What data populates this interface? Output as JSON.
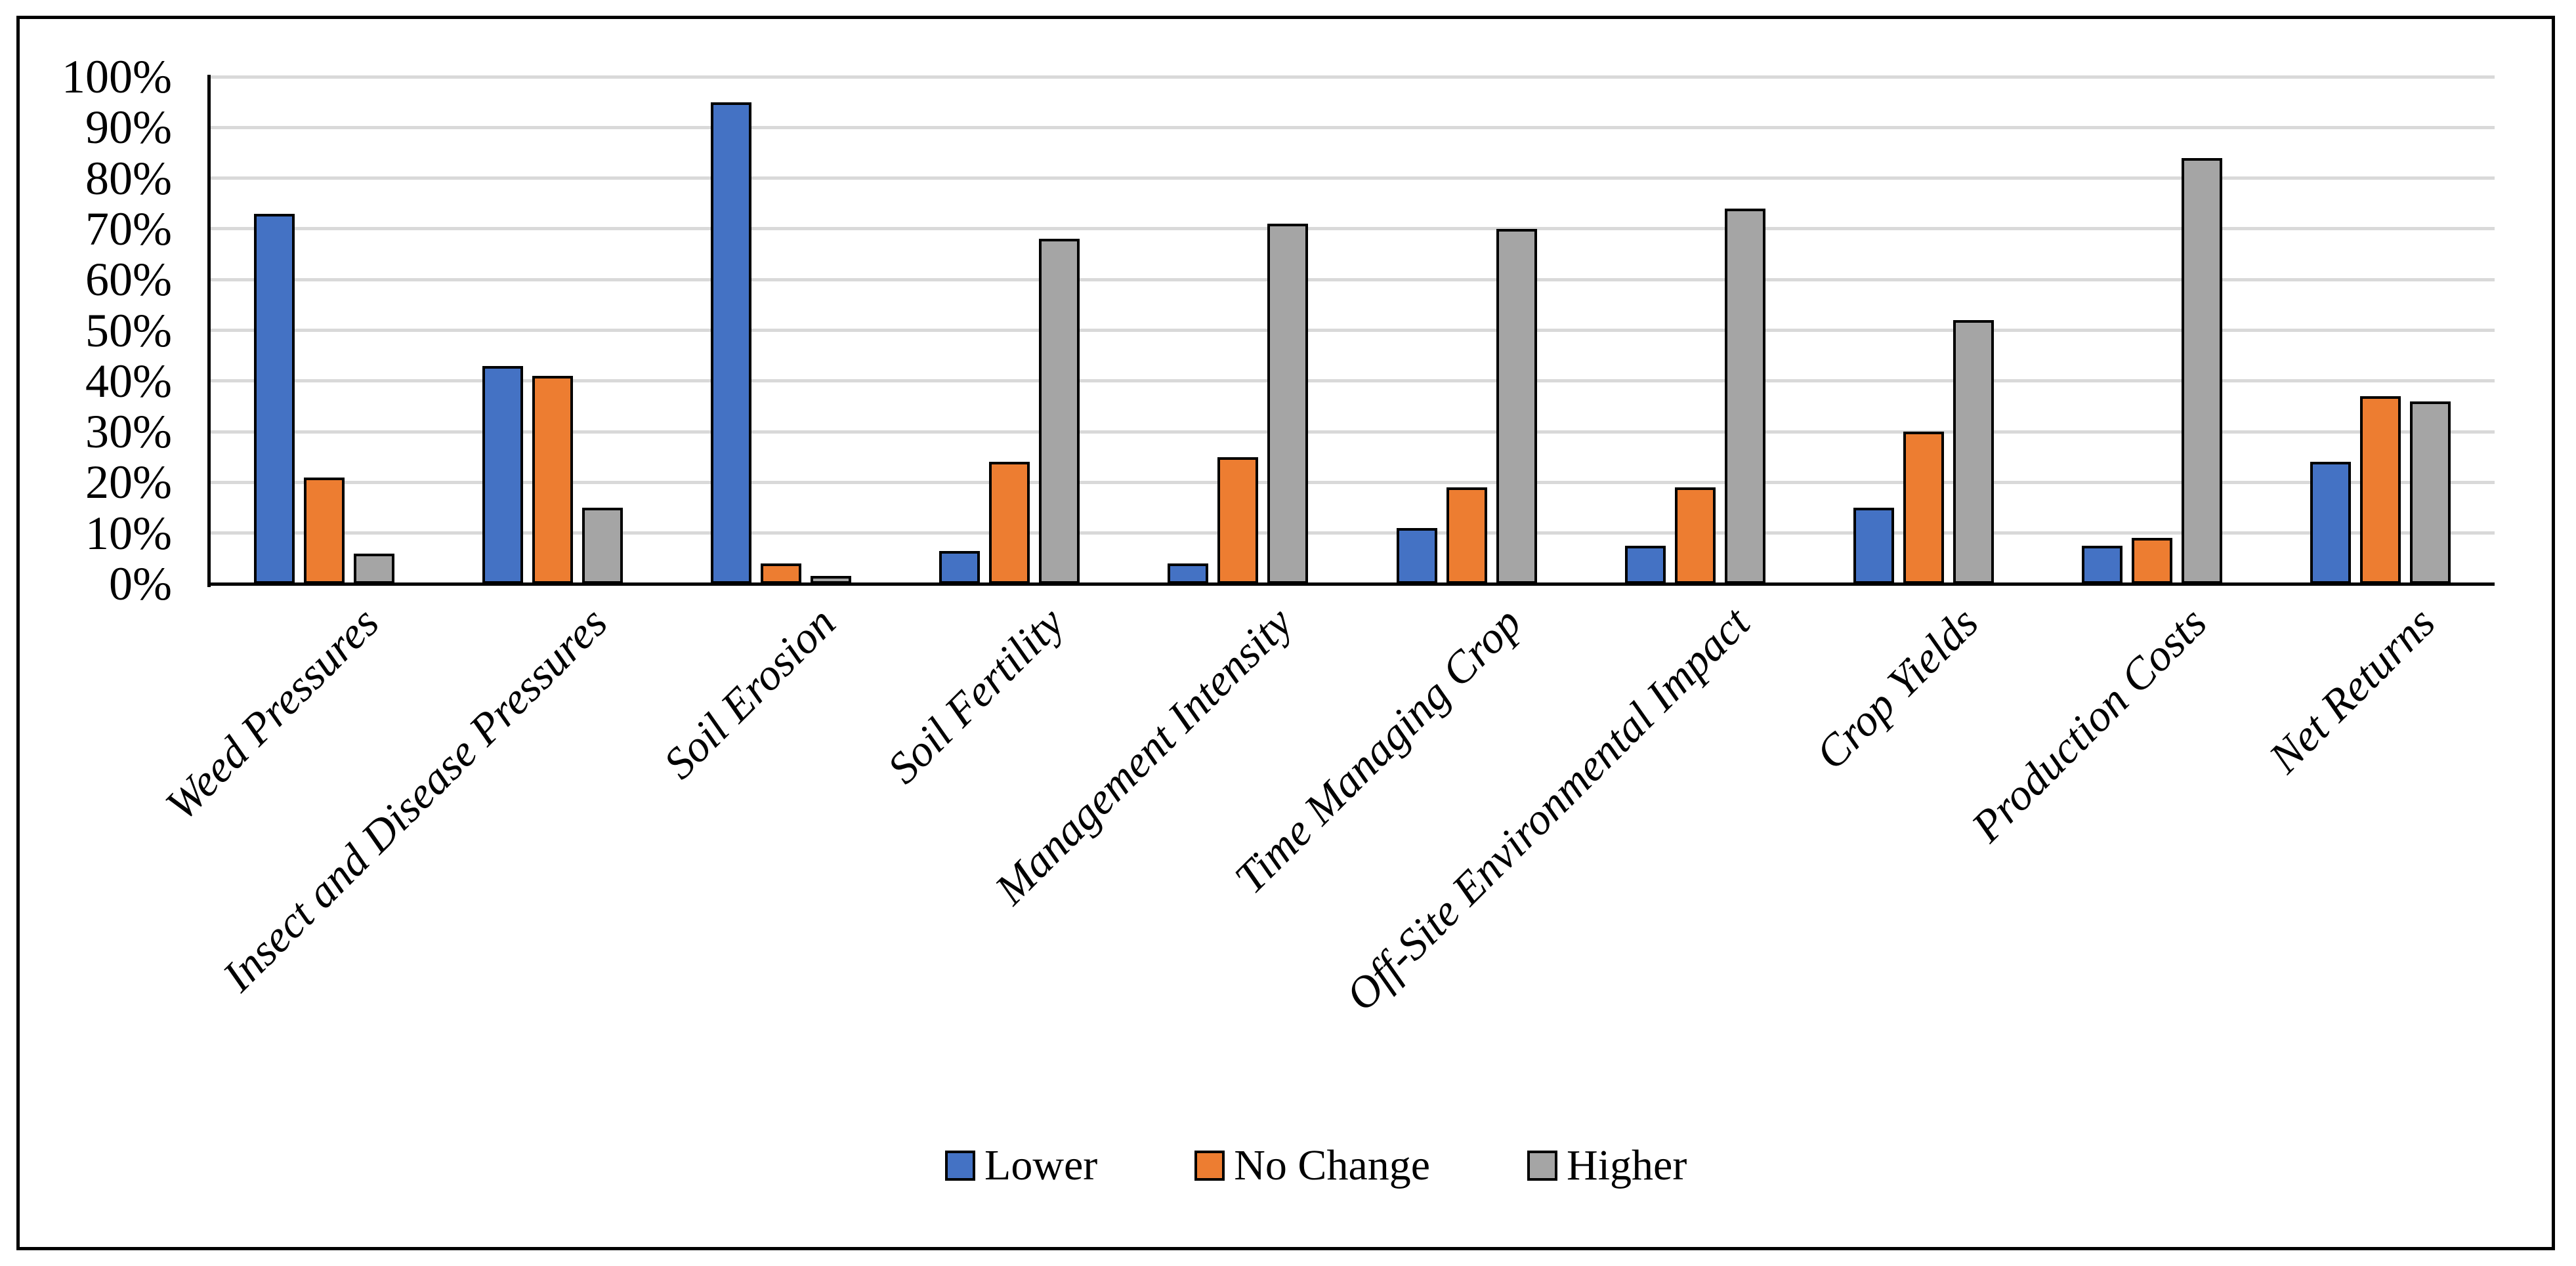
{
  "chart_data": {
    "type": "bar",
    "title": "",
    "xlabel": "",
    "ylabel": "",
    "ylim": [
      0,
      100
    ],
    "ytick_step": 10,
    "ytick_labels": [
      "0%",
      "10%",
      "20%",
      "30%",
      "40%",
      "50%",
      "60%",
      "70%",
      "80%",
      "90%",
      "100%"
    ],
    "grid": true,
    "legend_position": "bottom",
    "categories": [
      "Weed Pressures",
      "Insect and Disease Pressures",
      "Soil Erosion",
      "Soil Fertility",
      "Management Intensity",
      "Time Managing Crop",
      "Off-Site Environmental Impact",
      "Crop Yields",
      "Production Costs",
      "Net Returns"
    ],
    "series": [
      {
        "name": "Lower",
        "color": "#4472C4",
        "values": [
          73,
          43,
          95,
          6.5,
          4,
          11,
          7.5,
          15,
          7.5,
          24
        ]
      },
      {
        "name": "No Change",
        "color": "#ED7D31",
        "values": [
          21,
          41,
          4,
          24,
          25,
          19,
          19,
          30,
          9,
          37
        ]
      },
      {
        "name": "Higher",
        "color": "#A5A5A5",
        "values": [
          6,
          15,
          1.5,
          68,
          71,
          70,
          74,
          52,
          84,
          36
        ]
      }
    ]
  },
  "colors": {
    "background": "#FFFFFF",
    "frame_border": "#000000",
    "gridline": "#D9D9D9",
    "axis": "#000000",
    "bar_outline": "#000000",
    "text": "#000000"
  }
}
